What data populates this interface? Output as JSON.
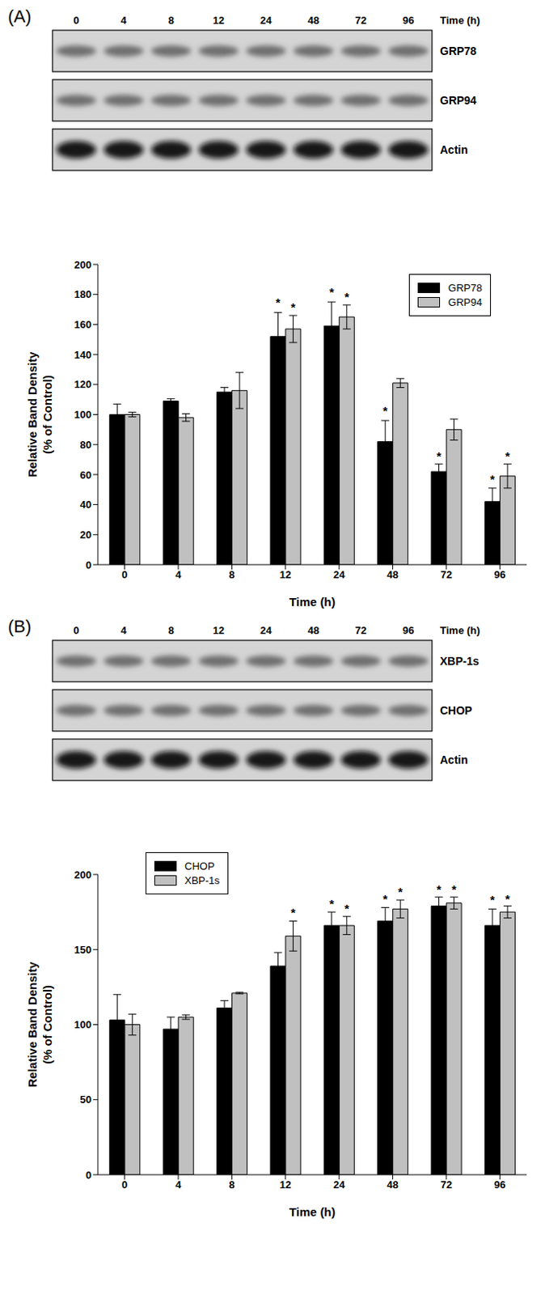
{
  "chart_data": [
    {
      "type": "bar",
      "title": "(A)",
      "categories": [
        "0",
        "4",
        "8",
        "12",
        "24",
        "48",
        "72",
        "96"
      ],
      "annotations": {
        "lanes_label": "Time (h)",
        "bands": [
          "GRP78",
          "GRP94",
          "Actin"
        ]
      },
      "x_label": "Time (h)",
      "y_label": "Relative Band Density\n(% of Control)",
      "ylim": [
        0,
        200
      ],
      "yticks": [
        0,
        20,
        40,
        60,
        80,
        100,
        120,
        140,
        160,
        180,
        200
      ],
      "grid": false,
      "legend": "upper right",
      "series": [
        {
          "name": "GRP78",
          "color": "#000000",
          "values": [
            100,
            109,
            115,
            152,
            159,
            82,
            62,
            42
          ],
          "errors": [
            7,
            1.5,
            3,
            16,
            16,
            14,
            5,
            9
          ],
          "significance": [
            null,
            null,
            null,
            "*",
            "*",
            "*",
            "*",
            "*"
          ]
        },
        {
          "name": "GRP94",
          "color": "#c0c0c0",
          "values": [
            100,
            98,
            116,
            157,
            165,
            121,
            90,
            59
          ],
          "errors": [
            1.5,
            2.5,
            12,
            9,
            8,
            3,
            7,
            8
          ],
          "significance": [
            null,
            null,
            null,
            "*",
            "*",
            null,
            null,
            "*"
          ]
        }
      ]
    },
    {
      "type": "bar",
      "title": "(B)",
      "categories": [
        "0",
        "4",
        "8",
        "12",
        "24",
        "48",
        "72",
        "96"
      ],
      "annotations": {
        "lanes_label": "Time (h)",
        "bands": [
          "XBP-1s",
          "CHOP",
          "Actin"
        ]
      },
      "x_label": "Time (h)",
      "y_label": "Relative Band Density\n(% of Control)",
      "ylim": [
        0,
        200
      ],
      "yticks": [
        0,
        50,
        100,
        150,
        200
      ],
      "grid": false,
      "legend": "upper left",
      "series": [
        {
          "name": "CHOP",
          "color": "#000000",
          "values": [
            103,
            97,
            111,
            139,
            166,
            169,
            179,
            166
          ],
          "errors": [
            17,
            8,
            5,
            9,
            9,
            9,
            6,
            11
          ],
          "significance": [
            null,
            null,
            null,
            null,
            "*",
            "*",
            "*",
            "*"
          ]
        },
        {
          "name": "XBP-1s",
          "color": "#c0c0c0",
          "values": [
            100,
            105,
            121,
            159,
            166,
            177,
            181,
            175
          ],
          "errors": [
            7,
            1.5,
            0.5,
            10,
            6,
            6,
            4,
            4
          ],
          "significance": [
            null,
            null,
            null,
            "*",
            "*",
            "*",
            "*",
            "*"
          ]
        }
      ]
    }
  ]
}
